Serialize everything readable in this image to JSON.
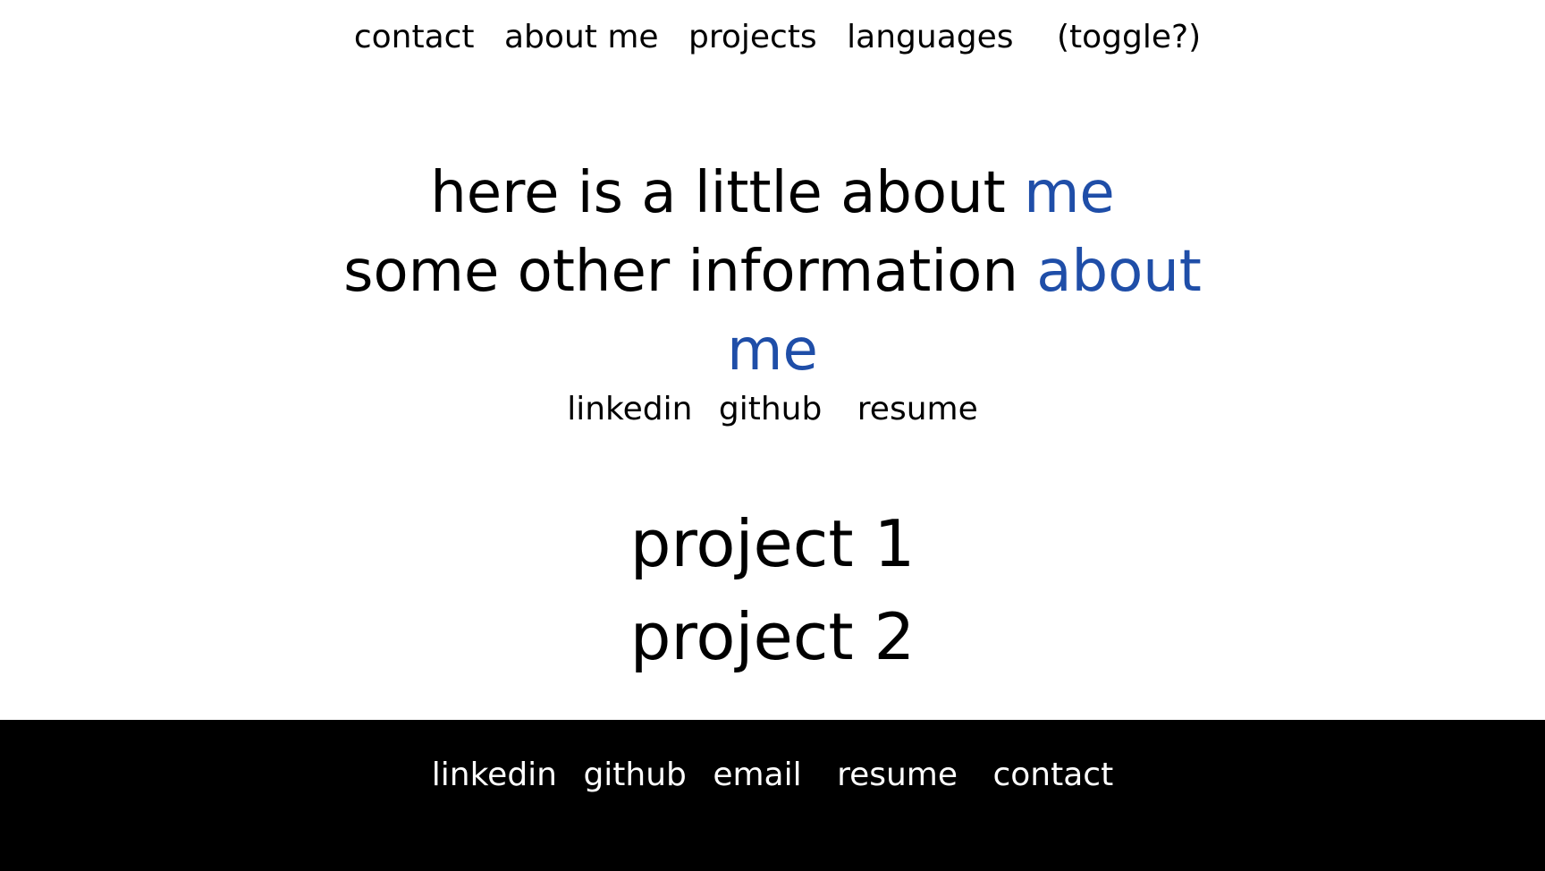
{
  "nav": {
    "items": [
      {
        "label": "contact"
      },
      {
        "label": "about me"
      },
      {
        "label": "projects"
      },
      {
        "label": "languages"
      }
    ],
    "toggle_label": "(toggle?)"
  },
  "intro": {
    "line1_text": "here is a little about ",
    "line1_accent": "me",
    "line2_text": "some other information ",
    "line2_accent": "about me",
    "accent_color": "#1f4ea8"
  },
  "social_links": {
    "linkedin": "linkedin",
    "github": "github",
    "resume": "resume"
  },
  "projects": {
    "items": [
      {
        "label": "project 1"
      },
      {
        "label": "project 2"
      }
    ]
  },
  "footer": {
    "linkedin": "linkedin",
    "github": "github",
    "email": "email",
    "resume": "resume",
    "contact": "contact",
    "background_color": "#000000",
    "text_color": "#ffffff"
  }
}
